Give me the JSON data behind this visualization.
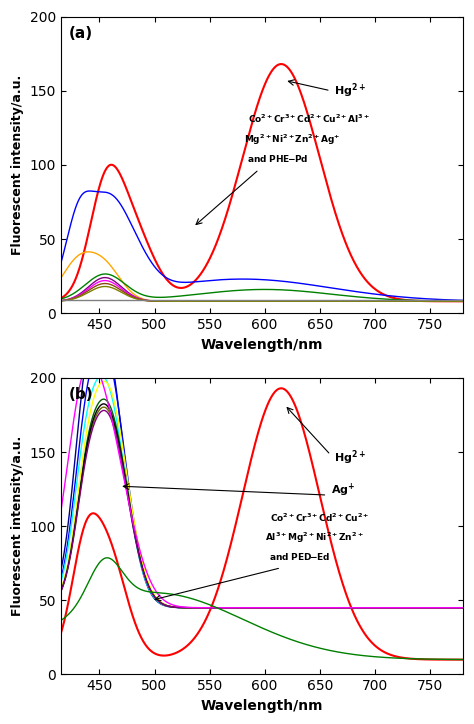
{
  "panel_a": {
    "title": "(a)",
    "xlabel": "Wavelength/nm",
    "ylabel": "Fluorescent intensity/a.u.",
    "xlim": [
      415,
      780
    ],
    "ylim": [
      0,
      200
    ],
    "xticks": [
      450,
      500,
      550,
      600,
      650,
      700,
      750
    ],
    "yticks": [
      0,
      50,
      100,
      150,
      200
    ]
  },
  "panel_b": {
    "title": "(b)",
    "xlabel": "Wavelength/nm",
    "ylabel": "Fluorescent intensity/a.u.",
    "xlim": [
      415,
      780
    ],
    "ylim": [
      0,
      200
    ],
    "xticks": [
      450,
      500,
      550,
      600,
      650,
      700,
      750
    ],
    "yticks": [
      0,
      50,
      100,
      150,
      200
    ]
  }
}
